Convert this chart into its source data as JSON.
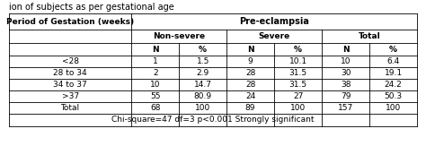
{
  "title_top": "ion of subjects as per gestational age",
  "header1": "Period of Gestation (weeks)",
  "header2": "Pre-eclampsia",
  "subheader_nonsevere": "Non-severe",
  "subheader_severe": "Severe",
  "subheader_total": "Total",
  "col_n": "N",
  "col_pct": "%",
  "rows": [
    [
      "<28",
      "1",
      "1.5",
      "9",
      "10.1",
      "10",
      "6.4"
    ],
    [
      "28 to 34",
      "2",
      "2.9",
      "28",
      "31.5",
      "30",
      "19.1"
    ],
    [
      "34 to 37",
      "10",
      "14.7",
      "28",
      "31.5",
      "38",
      "24.2"
    ],
    [
      ">37",
      "55",
      "80.9",
      "24",
      "27",
      "79",
      "50.3"
    ],
    [
      "Total",
      "68",
      "100",
      "89",
      "100",
      "157",
      "100"
    ]
  ],
  "footer": "Chi-square=47 df=3 p<0.001 Strongly significant",
  "bg_color": "#ffffff",
  "line_color": "#000000",
  "text_color": "#000000",
  "font_size": 6.5,
  "bold_font_size": 7.0,
  "title_font_size": 7.0,
  "lw": 0.6
}
